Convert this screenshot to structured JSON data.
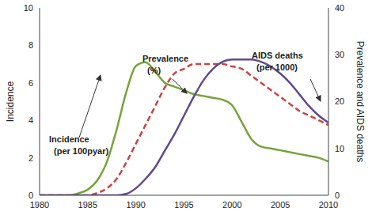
{
  "chart_data": {
    "type": "line",
    "x": [
      1980,
      1981,
      1982,
      1983,
      1984,
      1985,
      1986,
      1987,
      1988,
      1989,
      1990,
      1991,
      1992,
      1993,
      1994,
      1995,
      1996,
      1997,
      1998,
      1999,
      2000,
      2001,
      2002,
      2003,
      2004,
      2005,
      2006,
      2007,
      2008,
      2009,
      2010
    ],
    "xlim": [
      1980,
      2010
    ],
    "xticks": [
      1980,
      1985,
      1990,
      1995,
      2000,
      2005,
      2010
    ],
    "ylim": [
      0,
      10
    ],
    "yticks": [
      0,
      2,
      4,
      6,
      8,
      10
    ],
    "y2lim": [
      0,
      40
    ],
    "y2ticks": [
      0,
      10,
      20,
      30,
      40
    ],
    "ylabel": "Incidence",
    "y2label": "Prevalence and AIDS deaths",
    "series": [
      {
        "name": "Incidence (per 100pyar)",
        "color": "#77a33a",
        "line_style": "solid",
        "marker": "none",
        "values": [
          0,
          0,
          0,
          0,
          0.1,
          0.3,
          0.8,
          1.8,
          3.5,
          5.5,
          6.9,
          7.1,
          6.6,
          6.0,
          5.8,
          5.6,
          5.4,
          5.3,
          5.2,
          5.1,
          4.8,
          3.9,
          3.0,
          2.6,
          2.5,
          2.4,
          2.3,
          2.2,
          2.1,
          2.0,
          1.8
        ]
      },
      {
        "name": "Prevalence (%)",
        "color": "#d04040",
        "line_style": "dashed",
        "marker": "none",
        "axis": "y2",
        "values": [
          0,
          0,
          0,
          0,
          0,
          0,
          0.5,
          1.5,
          3.5,
          7,
          11,
          15,
          19,
          23,
          26,
          27,
          28,
          28,
          28,
          28,
          27.5,
          27,
          25.5,
          24,
          22.5,
          21,
          19.5,
          18,
          17,
          16,
          15
        ]
      },
      {
        "name": "AIDS deaths (per 1000)",
        "color": "#604a8b",
        "line_style": "solid",
        "marker": "none",
        "axis": "y2",
        "values": [
          0,
          0,
          0,
          0,
          0,
          0,
          0,
          0,
          0,
          0.3,
          1.5,
          3.5,
          6,
          9.5,
          13,
          17,
          21,
          24.5,
          27,
          28.5,
          29,
          29,
          29,
          28.5,
          27.5,
          26,
          24,
          21.5,
          19,
          17,
          15.5
        ]
      }
    ]
  }
}
